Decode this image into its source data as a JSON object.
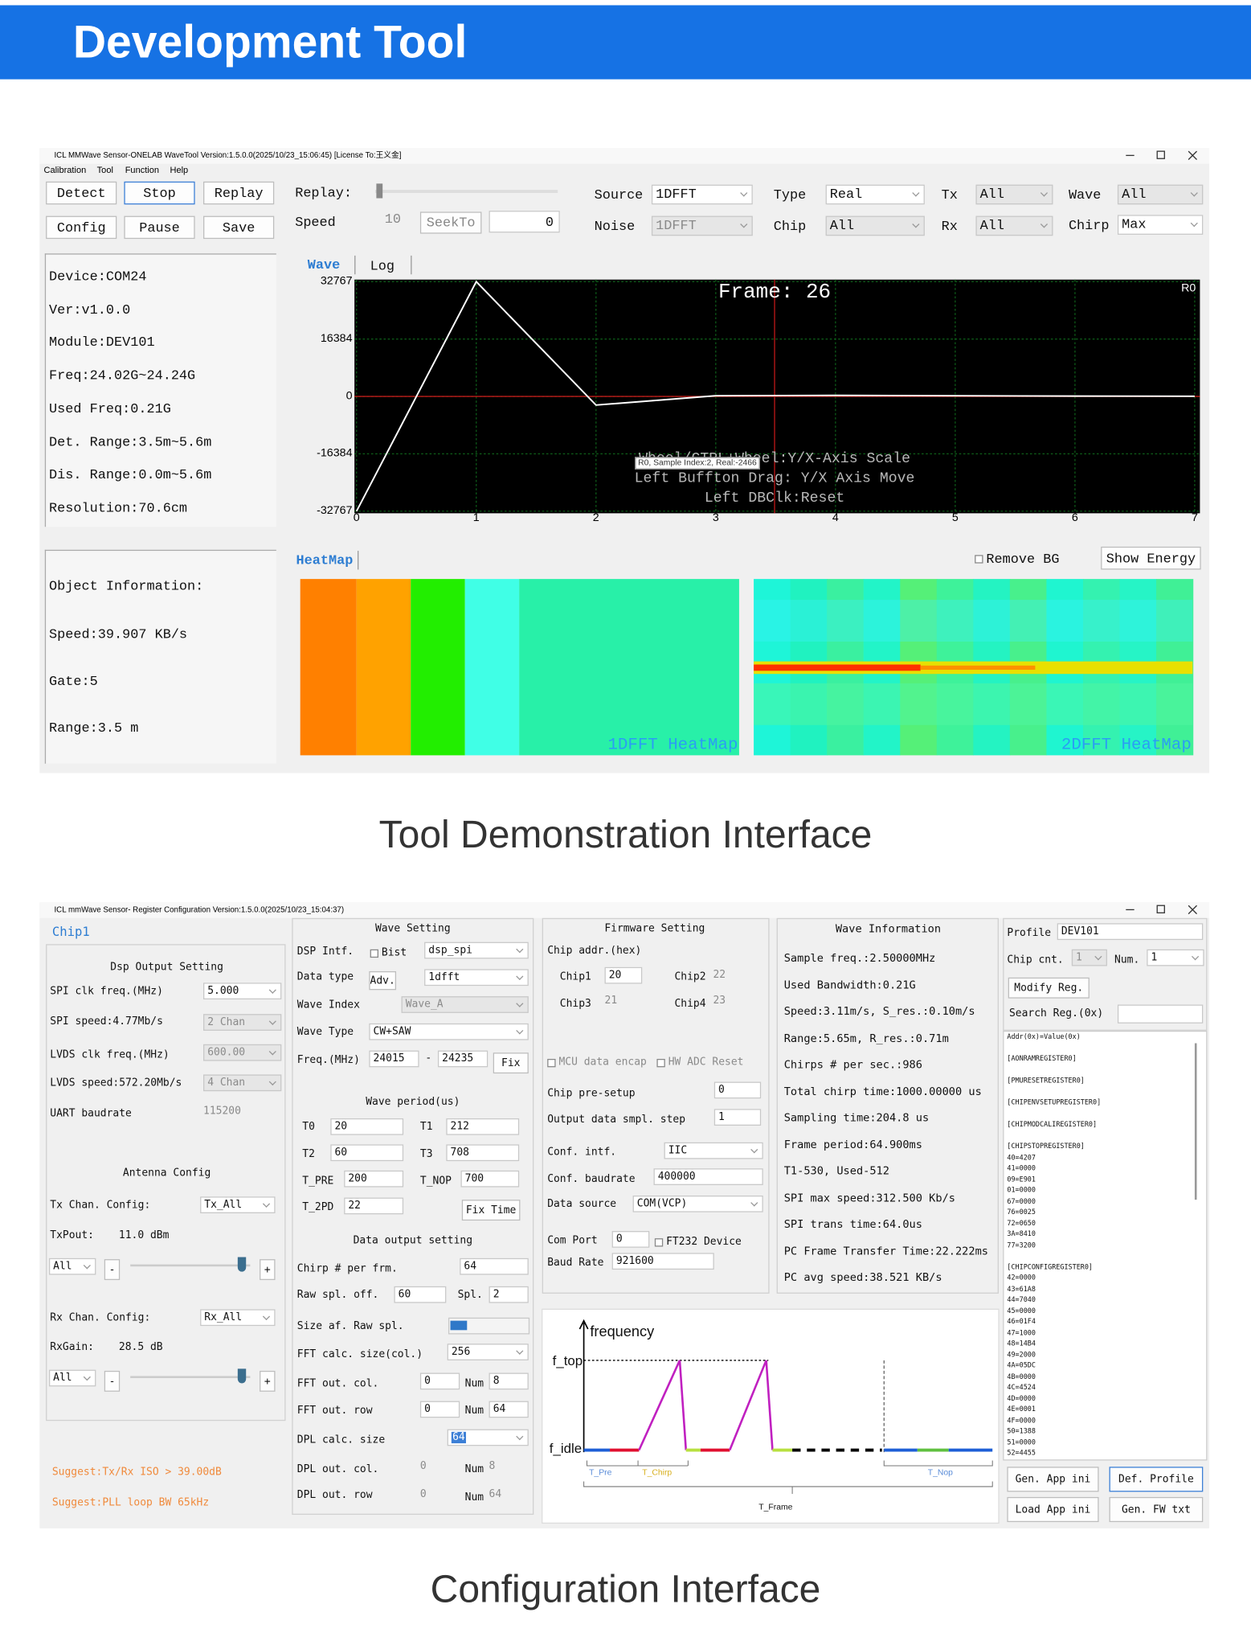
{
  "header": {
    "title": "Development Tool"
  },
  "demo": {
    "window_title": "ICL MMWave Sensor-ONELAB WaveTool Version:1.5.0.0(2025/10/23_15:06:45) [License To:王义金]",
    "menu": [
      "Calibration",
      "Tool",
      "Function",
      "Help"
    ],
    "buttons": [
      "Detect",
      "Stop",
      "Replay",
      "Config",
      "Pause",
      "Save"
    ],
    "replay_label": "Replay:",
    "speed_label": "Speed",
    "speed_value": "10",
    "seek_button": "SeekTo",
    "seek_value": "0",
    "selectors": [
      {
        "label": "Source",
        "value": "1DFFT"
      },
      {
        "label": "Noise",
        "value": "1DFFT"
      },
      {
        "label": "Type",
        "value": "Real"
      },
      {
        "label": "Chip",
        "value": "All"
      },
      {
        "label": "Tx",
        "value": "All"
      },
      {
        "label": "Rx",
        "value": "All"
      },
      {
        "label": "Wave",
        "value": "All"
      },
      {
        "label": "Chirp",
        "value": "Max"
      }
    ],
    "device_info": [
      "Device:COM24",
      "Ver:v1.0.0",
      "Module:DEV101",
      "Freq:24.02G~24.24G",
      "Used Freq:0.21G",
      "Det. Range:3.5m~5.6m",
      "Dis. Range:0.0m~5.6m",
      "Resolution:70.6cm"
    ],
    "object_info": [
      "Object Information:",
      "Speed:39.907 KB/s",
      "Gate:5",
      "Range:3.5 m"
    ],
    "tabs": [
      "Wave",
      "Log"
    ],
    "heatmap_tab": "HeatMap",
    "remove_bg": "Remove BG",
    "show_energy": "Show Energy",
    "heatmap_labels": [
      "1DFFT HeatMap",
      "2DFFT HeatMap"
    ]
  },
  "chart_data": {
    "type": "line",
    "frame_label": "Frame: 26",
    "channel": "R0",
    "tooltip": "R0, Sample Index:2, Real:-2466",
    "hints": [
      "Wheel/CTRL+Wheel:Y/X-Axis Scale",
      "Left Buffton Drag: Y/X Axis Move",
      "Left DBClk:Reset"
    ],
    "x": [
      0,
      1,
      2,
      3,
      4,
      5,
      6,
      7
    ],
    "values": [
      -32767,
      32767,
      -2466,
      200,
      300,
      200,
      100,
      50
    ],
    "color": "#ffffff",
    "xlim": [
      0,
      7
    ],
    "ylim": [
      -32767,
      32767
    ],
    "xticks": [
      0,
      1,
      2,
      3,
      4,
      5,
      6,
      7
    ],
    "yticks": [
      -32767,
      -16384,
      0,
      16384,
      32767
    ],
    "grid": true
  },
  "demo_caption": "Tool Demonstration Interface",
  "config": {
    "window_title": "ICL mmWave Sensor- Register Configuration Version:1.5.0.0(2025/10/23_15:04:37)",
    "tab": "Chip1",
    "dsp_output": [
      "Dsp Output Setting",
      "SPI clk freq.(MHz)",
      "5.000",
      "SPI speed:4.77Mb/s",
      "2 Chan",
      "LVDS clk freq.(MHz)",
      "600.00",
      "LVDS speed:572.20Mb/s",
      "4 Chan",
      "UART baudrate",
      "115200"
    ],
    "antenna": [
      "Antenna Config",
      "Tx Chan. Config:",
      "Tx_All",
      "TxPout:",
      "11.0 dBm",
      "All",
      "-",
      "+",
      "Rx Chan. Config:",
      "Rx_All",
      "RxGain:",
      "28.5 dB",
      "All",
      "-",
      "+"
    ],
    "suggestions": [
      "Suggest:Tx/Rx ISO > 39.00dB",
      "Suggest:PLL loop BW 65kHz"
    ],
    "wave_setting": [
      "Wave Setting",
      "DSP Intf.",
      "Bist",
      "dsp_spi",
      "Data type",
      "Adv.",
      "1dfft",
      "Wave Index",
      "Wave_A",
      "Wave Type",
      "CW+SAW",
      "Freq.(MHz)",
      "24015",
      "-",
      "24235",
      "Fix",
      "Wave period(us)",
      "T0",
      "20",
      "T1",
      "212",
      "T2",
      "60",
      "T3",
      "708",
      "T_PRE",
      "200",
      "T_NOP",
      "700",
      "T_2PD",
      "22",
      "Fix Time",
      "Data output setting",
      "Chirp # per frm.",
      "64",
      "Raw spl. off.",
      "60",
      "Spl.",
      "2",
      "Size af. Raw spl.",
      "FFT calc. size(col.)",
      "256",
      "FFT out. col.",
      "0",
      "Num",
      "8",
      "FFT out. row",
      "0",
      "Num",
      "64",
      "DPL calc. size",
      "64",
      "DPL out. col.",
      "0",
      "Num",
      "8",
      "DPL out. row",
      "0",
      "Num",
      "64"
    ],
    "firmware": [
      "Firmware Setting",
      "Chip addr.(hex)",
      "Chip1",
      "20",
      "Chip2",
      "22",
      "Chip3",
      "21",
      "Chip4",
      "23",
      "MCU data encap",
      "HW ADC Reset",
      "Chip pre-setup",
      "0",
      "Output data smpl. step",
      "1",
      "Conf. intf.",
      "IIC",
      "Conf. baudrate",
      "400000",
      "Data source",
      "COM(VCP)",
      "Com Port",
      "0",
      "FT232 Device",
      "Baud Rate",
      "921600"
    ],
    "timing_diagram": [
      "frequency",
      "f_top",
      "f_idle",
      "T_Pre",
      "T_Chirp",
      "T_Nop",
      "T_Frame"
    ],
    "wave_info": [
      "Wave Information",
      "Sample freq.:2.50000MHz",
      "Used Bandwidth:0.21G",
      "Speed:3.11m/s, S_res.:0.10m/s",
      "Range:5.65m, R_res.:0.71m",
      "Chirps # per sec.:986",
      "Total chirp time:1000.00000 us",
      "Sampling time:204.8 us",
      "Frame period:64.900ms",
      "T1-530, Used-512",
      "SPI max speed:312.500 Kb/s",
      "SPI trans time:64.0us",
      "PC Frame Transfer Time:22.222ms",
      "PC avg speed:38.521 KB/s"
    ],
    "profile": [
      "Profile",
      "DEV101",
      "Chip cnt.",
      "1",
      "Num.",
      "1",
      "Modify Reg.",
      "Search Reg.(0x)"
    ],
    "registers": {
      "heading": "Addr(0x)=Value(0x)",
      "groups": [
        {
          "name": "[AONRAMREGISTER0]",
          "entries": []
        },
        {
          "name": "[PMURESETREGISTER0]",
          "entries": []
        },
        {
          "name": "[CHIPENVSETUPREGISTER0]",
          "entries": []
        },
        {
          "name": "[CHIPMODCALIREGISTER0]",
          "entries": []
        },
        {
          "name": "[CHIPSTOPREGISTER0]",
          "entries": [
            "40=4207",
            "41=0000",
            "09=E901",
            "01=0000",
            "67=0000",
            "76=0025",
            "72=0650",
            "3A=8410",
            "77=3200"
          ]
        },
        {
          "name": "[CHIPCONFIGREGISTER0]",
          "entries": [
            "42=0000",
            "43=61A8",
            "44=7040",
            "45=0000",
            "46=01F4",
            "47=1000",
            "48=14B4",
            "49=2000",
            "4A=05DC",
            "4B=0000",
            "4C=4524",
            "4D=0000",
            "4E=0001",
            "4F=0000",
            "50=1388",
            "51=0000",
            "52=4455"
          ]
        }
      ]
    },
    "app_buttons": [
      "Gen. App ini",
      "Def. Profile",
      "Load App ini",
      "Gen. FW txt"
    ]
  },
  "config_caption": "Configuration Interface"
}
